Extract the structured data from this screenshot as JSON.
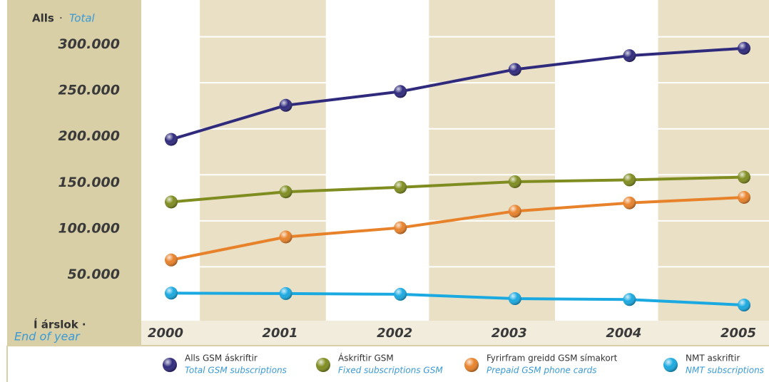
{
  "chart_data": {
    "type": "line",
    "y_title": "Alls",
    "y_title_en": "Total",
    "x_title": "Í árslok ·",
    "x_title_en": "End of year",
    "categories": [
      "2000",
      "2001",
      "2002",
      "2003",
      "2004",
      "2005"
    ],
    "ylim": [
      0,
      350000
    ],
    "yticks": [
      {
        "value": 50000,
        "label": "50.000"
      },
      {
        "value": 100000,
        "label": "100.000"
      },
      {
        "value": 150000,
        "label": "150.000"
      },
      {
        "value": 200000,
        "label": "200.000"
      },
      {
        "value": 250000,
        "label": "250.000"
      },
      {
        "value": 300000,
        "label": "300.000"
      }
    ],
    "grid": true,
    "series": [
      {
        "name": "Alls GSM áskriftir",
        "name_en": "Total GSM subscriptions",
        "color": "#2f2a7c",
        "values": [
          197000,
          234000,
          249000,
          273000,
          288000,
          296000
        ]
      },
      {
        "name": "Áskriftir GSM",
        "name_en": "Fixed subscriptions GSM",
        "color": "#7f8c1f",
        "values": [
          129000,
          140000,
          145000,
          151000,
          153000,
          156000
        ]
      },
      {
        "name": "Fyrirfram greidd GSM símakort",
        "name_en": "Prepaid GSM phone cards",
        "color": "#e8822a",
        "values": [
          66000,
          91000,
          101000,
          119000,
          128000,
          134000
        ]
      },
      {
        "name": "NMT askriftir",
        "name_en": "NMT subscriptions",
        "color": "#1aa9e0",
        "values": [
          30000,
          29500,
          28700,
          24000,
          23000,
          17000
        ]
      }
    ]
  }
}
